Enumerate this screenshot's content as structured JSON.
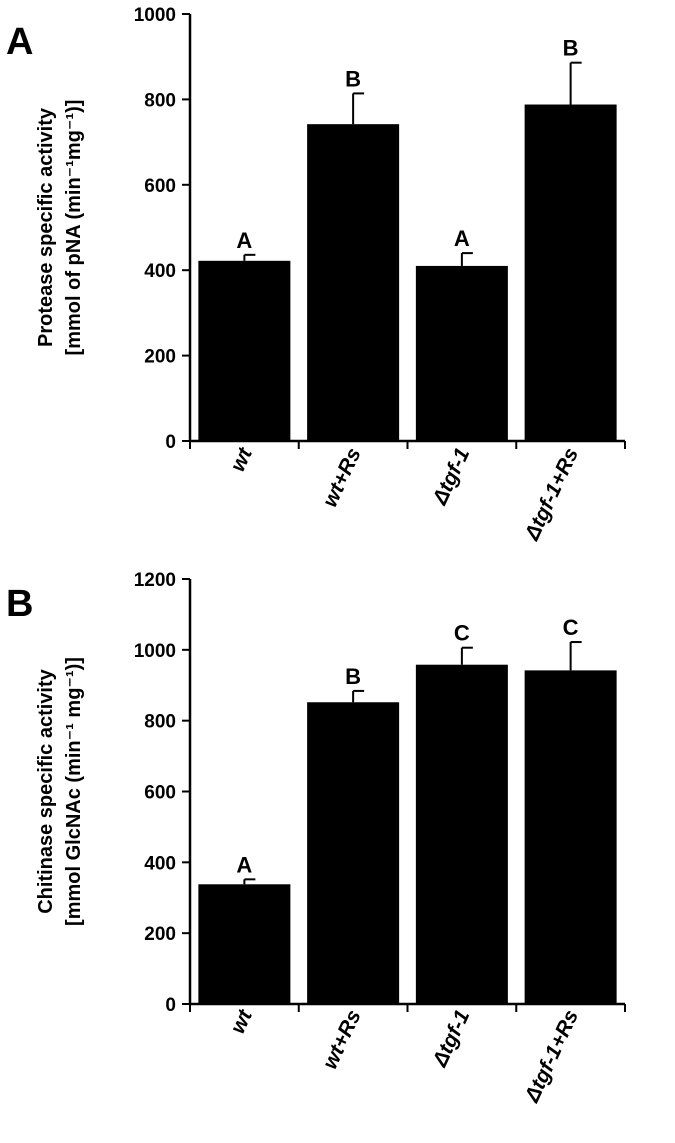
{
  "chart_data": [
    {
      "type": "bar",
      "panel_label": "A",
      "ylabel_line1": "Protease specific activity",
      "ylabel_line2": "[mmol of pNA (min⁻¹mg⁻¹)]",
      "ylim": [
        0,
        1000
      ],
      "yticks": [
        0,
        200,
        400,
        600,
        800,
        1000
      ],
      "categories": [
        "wt",
        "wt+Rs",
        "Δtgf-1",
        "Δtgf-1+Rs"
      ],
      "values": [
        422,
        742,
        410,
        788
      ],
      "errors": [
        14,
        72,
        30,
        98
      ],
      "significance": [
        "A",
        "B",
        "A",
        "B"
      ],
      "bar_color": "#000000",
      "grid": false
    },
    {
      "type": "bar",
      "panel_label": "B",
      "ylabel_line1": "Chitinase specific activity",
      "ylabel_line2": "[mmol GlcNAc (min⁻¹ mg⁻¹)]",
      "ylim": [
        0,
        1200
      ],
      "yticks": [
        0,
        200,
        400,
        600,
        800,
        1000,
        1200
      ],
      "categories": [
        "wt",
        "wt+Rs",
        "Δtgf-1",
        "Δtgf-1+Rs"
      ],
      "values": [
        338,
        852,
        958,
        942
      ],
      "errors": [
        14,
        32,
        48,
        80
      ],
      "significance": [
        "A",
        "B",
        "C",
        "C"
      ],
      "bar_color": "#000000",
      "grid": false
    }
  ]
}
